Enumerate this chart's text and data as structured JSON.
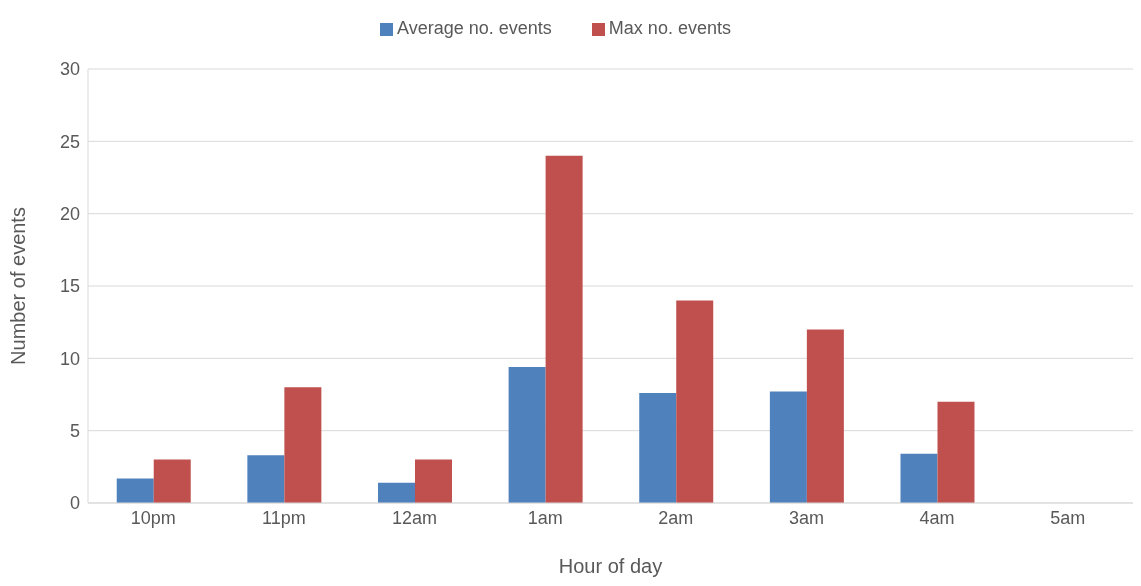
{
  "chart_data": {
    "type": "bar",
    "xlabel": "Hour of day",
    "ylabel": "Number of events",
    "categories": [
      "10pm",
      "11pm",
      "12am",
      "1am",
      "2am",
      "3am",
      "4am",
      "5am"
    ],
    "series": [
      {
        "name": "Average no. events",
        "color": "#4f81bd",
        "values": [
          1.7,
          3.3,
          1.4,
          9.4,
          7.6,
          7.7,
          3.4,
          0
        ]
      },
      {
        "name": "Max no. events",
        "color": "#c0504d",
        "values": [
          3,
          8,
          3,
          24,
          14,
          12,
          7,
          0
        ]
      }
    ],
    "ylim": [
      0,
      30
    ],
    "yticks": [
      0,
      5,
      10,
      15,
      20,
      25,
      30
    ],
    "grid": "y",
    "legend": "top"
  }
}
